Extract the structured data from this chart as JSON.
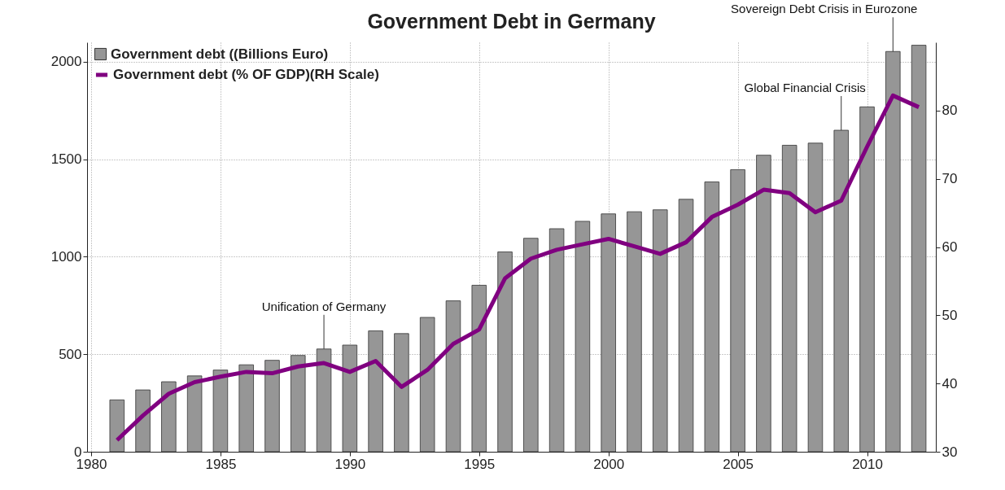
{
  "chart_data": {
    "type": "bar",
    "title": "Government Debt in Germany",
    "x": [
      1981,
      1982,
      1983,
      1984,
      1985,
      1986,
      1987,
      1988,
      1989,
      1990,
      1991,
      1992,
      1993,
      1994,
      1995,
      1996,
      1997,
      1998,
      1999,
      2000,
      2001,
      2002,
      2003,
      2004,
      2005,
      2006,
      2007,
      2008,
      2009,
      2010,
      2011,
      2012
    ],
    "series": [
      {
        "name": "Government debt ((Billions Euro)",
        "color": "#969696",
        "values": [
          266,
          317,
          359,
          389,
          419,
          446,
          469,
          494,
          527,
          547,
          620,
          606,
          689,
          774,
          854,
          1025,
          1095,
          1144,
          1182,
          1220,
          1231,
          1241,
          1295,
          1384,
          1447,
          1521,
          1572,
          1583,
          1649,
          1769,
          2053,
          2085
        ]
      },
      {
        "name": "Government debt (% OF GDP)(RH Scale)",
        "type": "line",
        "axis": "y2",
        "color": "#800080",
        "values": [
          31.7,
          35.3,
          38.5,
          40.2,
          41.0,
          41.7,
          41.5,
          42.5,
          43.0,
          41.7,
          43.3,
          39.5,
          42.0,
          45.8,
          47.9,
          55.4,
          58.3,
          59.6,
          60.4,
          61.2,
          60.1,
          59.0,
          60.7,
          64.4,
          66.2,
          68.4,
          67.9,
          65.1,
          66.8,
          74.7,
          82.2,
          80.5
        ]
      }
    ],
    "xlim": [
      1980,
      2012.5
    ],
    "xticks": [
      1980,
      1985,
      1990,
      1995,
      2000,
      2005,
      2010
    ],
    "ylim": [
      0,
      2100
    ],
    "yticks": [
      0,
      500,
      1000,
      1500,
      2000
    ],
    "y2lim": [
      30,
      90
    ],
    "y2ticks": [
      30,
      40,
      50,
      60,
      70,
      80
    ],
    "annotations": [
      {
        "text": "Unification of Germany",
        "x": 1989,
        "y": 527
      },
      {
        "text": "Global Financial Crisis",
        "x": 2009,
        "y": 1649
      },
      {
        "text": "Sovereign Debt Crisis in Eurozone",
        "x": 2011,
        "y": 2053
      }
    ],
    "grid": true,
    "legend": "top left"
  }
}
